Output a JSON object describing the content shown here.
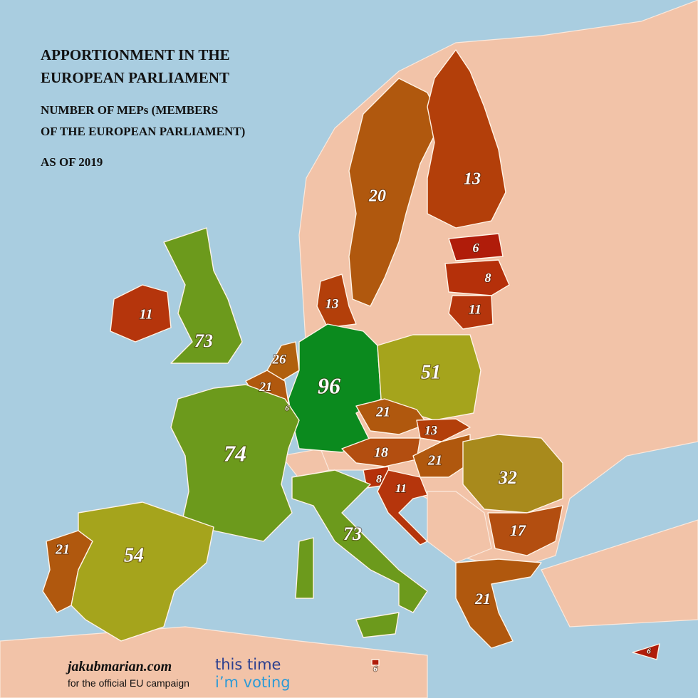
{
  "title": [
    "APPORTIONMENT IN THE",
    "EUROPEAN PARLIAMENT"
  ],
  "subtitle": [
    "NUMBER OF MEPs (MEMBERS",
    "OF THE EUROPEAN PARLIAMENT)"
  ],
  "date_note": "AS OF 2019",
  "regions": [
    {
      "value": 20,
      "color": "#b0580e"
    },
    {
      "value": 13,
      "color": "#b33f0a"
    },
    {
      "value": 6,
      "color": "#b01c0a"
    },
    {
      "value": 8,
      "color": "#b5300a"
    },
    {
      "value": 11,
      "color": "#b5350c"
    },
    {
      "value": 13,
      "color": "#b33f0a"
    },
    {
      "value": 11,
      "color": "#b5350c"
    },
    {
      "value": 73,
      "color": "#6c9a1c"
    },
    {
      "value": 26,
      "color": "#b0600e"
    },
    {
      "value": 21,
      "color": "#b0580e"
    },
    {
      "value": 6,
      "color": "#b01c0a"
    },
    {
      "value": 96,
      "color": "#0b8a1e"
    },
    {
      "value": 51,
      "color": "#a5a41c"
    },
    {
      "value": 21,
      "color": "#b0580e"
    },
    {
      "value": 13,
      "color": "#b33f0a"
    },
    {
      "value": 18,
      "color": "#b34e10"
    },
    {
      "value": 21,
      "color": "#b0580e"
    },
    {
      "value": 74,
      "color": "#6c9a1c"
    },
    {
      "value": 8,
      "color": "#b5300a"
    },
    {
      "value": 11,
      "color": "#b5350c"
    },
    {
      "value": 32,
      "color": "#a88a1c"
    },
    {
      "value": 17,
      "color": "#b34e10"
    },
    {
      "value": 73,
      "color": "#6c9a1c"
    },
    {
      "value": 21,
      "color": "#b0580e"
    },
    {
      "value": 54,
      "color": "#a5a41c"
    },
    {
      "value": 21,
      "color": "#b0580e"
    },
    {
      "value": 6,
      "color": "#b01c0a"
    },
    {
      "value": 6,
      "color": "#b01c0a"
    }
  ],
  "footer": {
    "source": "jakubmarian.com",
    "note": "for the official EU campaign",
    "campaign": [
      "this time",
      "i’m voting"
    ]
  }
}
